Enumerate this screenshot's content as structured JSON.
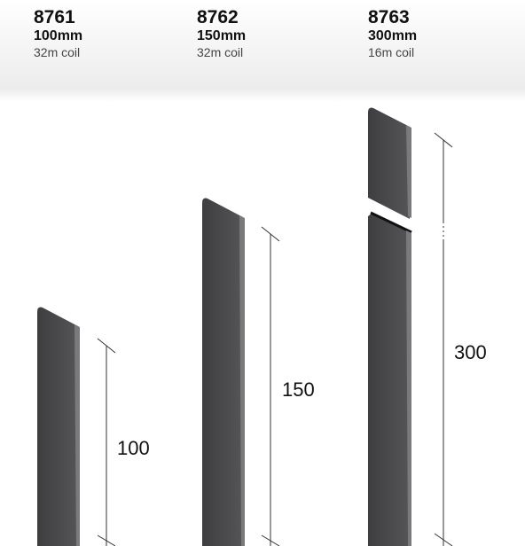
{
  "products": [
    {
      "code": "8761",
      "size": "100mm",
      "coil": "32m coil",
      "dimension": "100"
    },
    {
      "code": "8762",
      "size": "150mm",
      "coil": "32m coil",
      "dimension": "150"
    },
    {
      "code": "8763",
      "size": "300mm",
      "coil": "16m coil",
      "dimension": "300"
    }
  ]
}
